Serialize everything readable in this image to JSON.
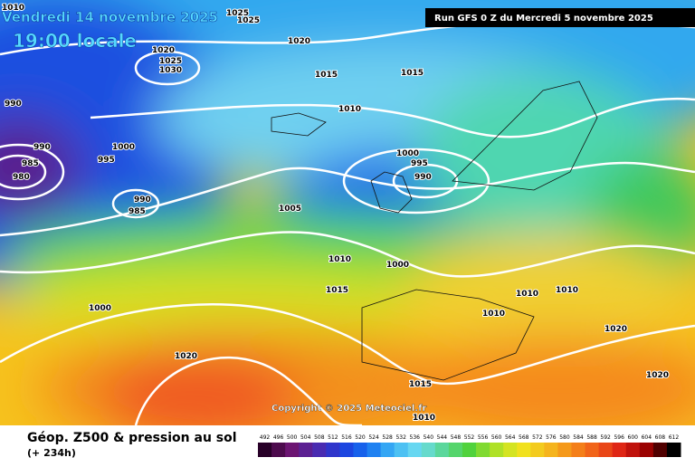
{
  "header": {
    "date": "Vendredi 14 novembre 2025",
    "time": "19:00 locale",
    "run": "Run GFS 0 Z du Mercredi 5 novembre 2025",
    "copyright": "Copyright © 2025 Meteociel.fr"
  },
  "footer": {
    "title": "Géop. Z500 & pression au sol",
    "lead": "(+ 234h)"
  },
  "isobar_labels": [
    1010,
    1025,
    1025,
    1020,
    1025,
    1030,
    1020,
    1015,
    1015,
    990,
    1010,
    990,
    985,
    980,
    1000,
    995,
    1000,
    995,
    990,
    990,
    985,
    1005,
    1010,
    1000,
    1015,
    1000,
    1010,
    1010,
    1010,
    1020,
    1020,
    1020,
    1015,
    1010
  ],
  "legend": {
    "values": [
      492,
      496,
      500,
      504,
      508,
      512,
      516,
      520,
      524,
      528,
      532,
      536,
      540,
      544,
      548,
      552,
      556,
      560,
      564,
      568,
      572,
      576,
      580,
      584,
      588,
      592,
      596,
      600,
      604,
      608,
      612
    ]
  }
}
